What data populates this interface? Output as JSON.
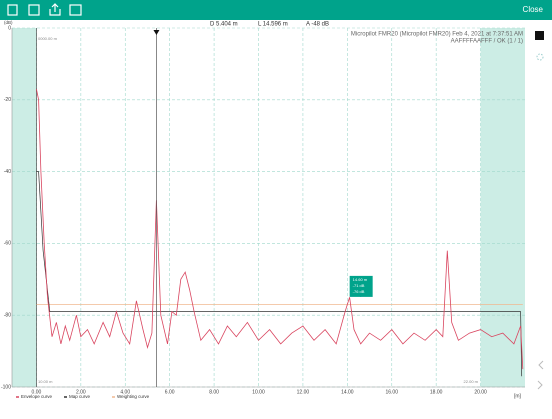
{
  "toolbar": {
    "close": "Close"
  },
  "cursor_info": {
    "distance": "D 5.404 m",
    "level": "L 14.596 m",
    "amplitude": "A -48 dB"
  },
  "device_info": {
    "line1": "Micropilot FMR20 (Micropilot FMR20) Feb 4, 2021 at 7:37:51 AM",
    "line2": "AAFFFFAAFFF / OK (1 / 1)"
  },
  "range_labels": {
    "top_left": "0000.00 m",
    "bottom_left": "10.00 m",
    "bottom_right": "22.00 m"
  },
  "marker_box": {
    "lines": [
      "14.60 m",
      "-71 dB",
      "-76 dB"
    ],
    "x": 14.6,
    "y": -71
  },
  "chart_data": {
    "type": "line",
    "y_label": "(dB)",
    "x_label": "[m]",
    "xlim": [
      -1.1,
      22
    ],
    "ylim": [
      -100,
      0
    ],
    "xticks": [
      {
        "value": 0,
        "label": "0.00"
      },
      {
        "value": 2,
        "label": "2.00"
      },
      {
        "value": 4,
        "label": "4.00"
      },
      {
        "value": 6,
        "label": "6.00"
      },
      {
        "value": 8,
        "label": "8.00"
      },
      {
        "value": 10,
        "label": "10.00"
      },
      {
        "value": 12,
        "label": "12.00"
      },
      {
        "value": 14,
        "label": "14.00"
      },
      {
        "value": 16,
        "label": "16.00"
      },
      {
        "value": 18,
        "label": "18.00"
      },
      {
        "value": 20,
        "label": "20.00"
      }
    ],
    "yticks": [
      0,
      -20,
      -40,
      -60,
      -80,
      -100
    ],
    "grid": true,
    "cursor_x": 5.404,
    "shaded_ranges": [
      [
        -1.1,
        0
      ],
      [
        20,
        22
      ]
    ],
    "series": [
      {
        "name": "Envelope curve",
        "color": "#d9455f",
        "x": [
          0,
          0.1,
          0.2,
          0.35,
          0.5,
          0.7,
          0.9,
          1.1,
          1.3,
          1.5,
          1.8,
          2.0,
          2.3,
          2.6,
          3.0,
          3.3,
          3.6,
          3.9,
          4.2,
          4.5,
          4.8,
          5.0,
          5.2,
          5.4,
          5.6,
          5.9,
          6.1,
          6.3,
          6.5,
          6.7,
          6.9,
          7.1,
          7.4,
          7.8,
          8.2,
          8.6,
          9.0,
          9.5,
          10.0,
          10.5,
          11.0,
          11.5,
          12.0,
          12.5,
          13.0,
          13.5,
          13.9,
          14.1,
          14.3,
          14.6,
          15.0,
          15.5,
          16.0,
          16.5,
          17.0,
          17.5,
          18.0,
          18.3,
          18.5,
          18.7,
          19.0,
          19.5,
          20.0,
          20.5,
          21.0,
          21.5,
          21.8,
          21.9
        ],
        "values": [
          -17,
          -20,
          -40,
          -60,
          -75,
          -86,
          -82,
          -88,
          -83,
          -87,
          -80,
          -86,
          -84,
          -88,
          -82,
          -86,
          -79,
          -85,
          -88,
          -76,
          -84,
          -89,
          -85,
          -48,
          -80,
          -88,
          -79,
          -80,
          -70,
          -68,
          -73,
          -79,
          -87,
          -84,
          -88,
          -83,
          -86,
          -82,
          -87,
          -84,
          -88,
          -85,
          -83,
          -87,
          -84,
          -88,
          -79,
          -75,
          -84,
          -88,
          -85,
          -87,
          -84,
          -88,
          -85,
          -87,
          -84,
          -86,
          -62,
          -82,
          -87,
          -85,
          -84,
          -86,
          -85,
          -88,
          -83,
          -95
        ]
      },
      {
        "name": "Map curve",
        "color": "#333333",
        "x": [
          0,
          0.1,
          0.3,
          0.6,
          21.8,
          21.85
        ],
        "values": [
          -40,
          -40,
          -62,
          -79,
          -79,
          -97
        ]
      },
      {
        "name": "Weighting curve",
        "color": "#f0b890",
        "x": [
          0,
          21.9
        ],
        "values": [
          -77,
          -77
        ]
      }
    ]
  }
}
